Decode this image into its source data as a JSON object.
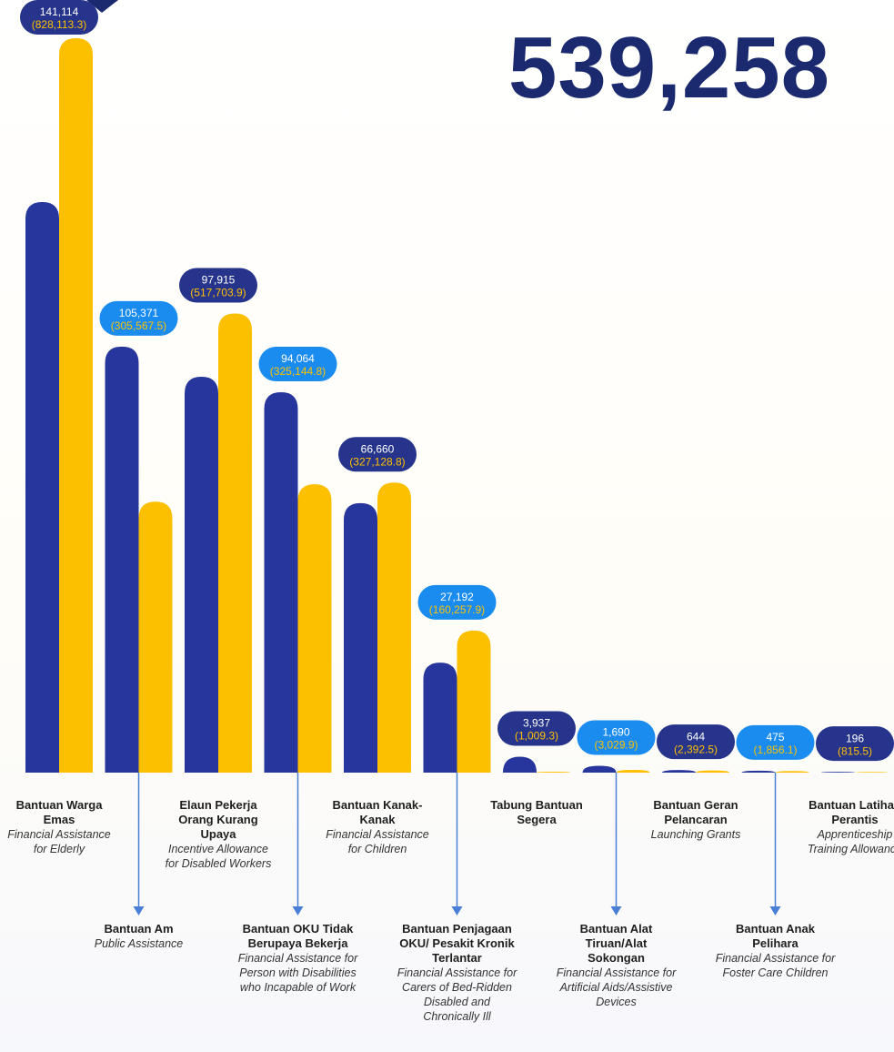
{
  "chart_data": {
    "type": "bar",
    "headline": "539,258",
    "categories": [
      "Bantuan Warga Emas",
      "Bantuan Am",
      "Elaun Pekerja Orang Kurang Upaya",
      "Bantuan OKU Tidak Berupaya Bekerja",
      "Bantuan Kanak-Kanak",
      "Bantuan Penjagaan OKU/ Pesakit Kronik Terlantar",
      "Tabung Bantuan Segera",
      "Bantuan Alat Tiruan/Alat Sokongan",
      "Bantuan Geran Pelancaran",
      "Bantuan Anak Pelihara",
      "Bantuan Latihan Perantis"
    ],
    "category_descriptions": [
      "Financial Assistance for Elderly",
      "Public Assistance",
      "Incentive Allowance for Disabled Workers",
      "Financial Assistance for Person with Disabilities who Incapable of Work",
      "Financial Assistance for Children",
      "Financial Assistance for Carers of Bed-Ridden Disabled and Chronically Ill",
      null,
      "Financial Assistance for Artificial Aids/Assistive Devices",
      "Launching Grants",
      "Financial Assistance for Foster Care Children",
      "Apprenticeship Training Allowance"
    ],
    "series": [
      {
        "color": "#26369c",
        "values": [
          141114,
          105371,
          97915,
          94064,
          66660,
          27192,
          3937,
          1690,
          644,
          475,
          196
        ],
        "value_labels": [
          "141,114",
          "105,371",
          "97,915",
          "94,064",
          "66,660",
          "27,192",
          "3,937",
          "1,690",
          "644",
          "475",
          "196"
        ]
      },
      {
        "color": "#fdc000",
        "values": [
          828113.3,
          305567.5,
          517703.9,
          325144.8,
          327128.8,
          160257.9,
          1009.3,
          3029.9,
          2392.5,
          1856.1,
          815.5
        ],
        "value_labels": [
          "(828,113.3)",
          "(305,567.5)",
          "(517,703.9)",
          "(325,144.8)",
          "(327,128.8)",
          "(160,257.9)",
          "(1,009.3)",
          "(3,029.9)",
          "(2,392.5)",
          "(1,856.1)",
          "(815.5)"
        ]
      }
    ]
  }
}
